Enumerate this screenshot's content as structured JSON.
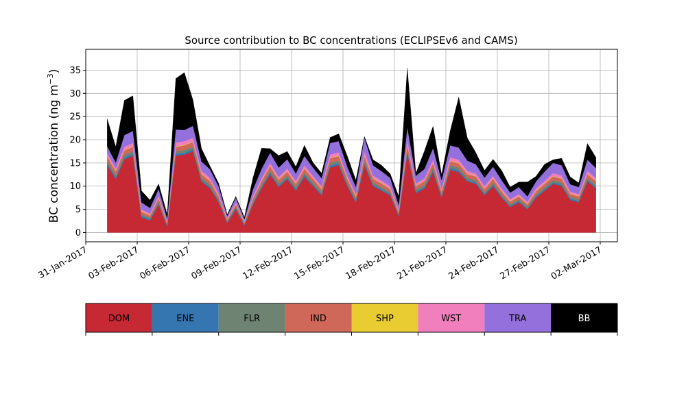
{
  "chart_data": {
    "type": "area",
    "title": "Source contribution to BC concentrations (ECLIPSEv6 and CAMS)",
    "ylabel": "BC concentration (ng m⁻³)",
    "ylabel_main": "BC concentration (ng m",
    "ylabel_sup": "−3",
    "ylabel_close": ")",
    "xlabel": "",
    "ylim": [
      -2,
      39.5
    ],
    "xlim": [
      "2017-01-31T00:00",
      "2017-03-03T00:00"
    ],
    "grid": true,
    "y_ticks": [
      0,
      5,
      10,
      15,
      20,
      25,
      30,
      35
    ],
    "x_ticks": [
      "2017-01-31",
      "2017-02-03",
      "2017-02-06",
      "2017-02-09",
      "2017-02-12",
      "2017-02-15",
      "2017-02-18",
      "2017-02-21",
      "2017-02-24",
      "2017-02-27",
      "2017-03-02"
    ],
    "x_tick_labels": [
      "31-Jan-2017",
      "03-Feb-2017",
      "06-Feb-2017",
      "09-Feb-2017",
      "12-Feb-2017",
      "15-Feb-2017",
      "18-Feb-2017",
      "21-Feb-2017",
      "24-Feb-2017",
      "27-Feb-2017",
      "02-Mar-2017"
    ],
    "x": [
      "2017-02-01T06:00",
      "2017-02-01T18:00",
      "2017-02-02T06:00",
      "2017-02-02T18:00",
      "2017-02-03T06:00",
      "2017-02-03T18:00",
      "2017-02-04T06:00",
      "2017-02-04T18:00",
      "2017-02-05T06:00",
      "2017-02-05T18:00",
      "2017-02-06T06:00",
      "2017-02-06T18:00",
      "2017-02-07T06:00",
      "2017-02-07T18:00",
      "2017-02-08T06:00",
      "2017-02-08T18:00",
      "2017-02-09T06:00",
      "2017-02-09T18:00",
      "2017-02-10T06:00",
      "2017-02-10T18:00",
      "2017-02-11T06:00",
      "2017-02-11T18:00",
      "2017-02-12T06:00",
      "2017-02-12T18:00",
      "2017-02-13T06:00",
      "2017-02-13T18:00",
      "2017-02-14T06:00",
      "2017-02-14T18:00",
      "2017-02-15T06:00",
      "2017-02-15T18:00",
      "2017-02-16T06:00",
      "2017-02-16T18:00",
      "2017-02-17T06:00",
      "2017-02-17T18:00",
      "2017-02-18T06:00",
      "2017-02-18T18:00",
      "2017-02-19T06:00",
      "2017-02-19T18:00",
      "2017-02-20T06:00",
      "2017-02-20T18:00",
      "2017-02-21T06:00",
      "2017-02-21T18:00",
      "2017-02-22T06:00",
      "2017-02-22T18:00",
      "2017-02-23T06:00",
      "2017-02-23T18:00",
      "2017-02-24T06:00",
      "2017-02-24T18:00",
      "2017-02-25T06:00",
      "2017-02-25T18:00",
      "2017-02-26T06:00",
      "2017-02-26T18:00",
      "2017-02-27T06:00",
      "2017-02-27T18:00",
      "2017-02-28T06:00",
      "2017-02-28T18:00",
      "2017-03-01T06:00",
      "2017-03-01T18:00"
    ],
    "series": [
      {
        "name": "DOM",
        "color": "#c62834",
        "values": [
          14.5,
          11.5,
          15.8,
          16.5,
          3.2,
          2.6,
          6.0,
          1.3,
          16.5,
          16.8,
          17.5,
          11.0,
          9.5,
          6.5,
          2.0,
          5.0,
          1.5,
          6.0,
          9.5,
          12.5,
          9.8,
          11.5,
          9.0,
          12.0,
          10.0,
          8.0,
          14.0,
          14.5,
          10.0,
          6.5,
          14.5,
          10.0,
          9.0,
          8.0,
          3.5,
          17.0,
          8.5,
          9.5,
          13.0,
          7.5,
          13.5,
          13.0,
          11.0,
          10.5,
          8.0,
          10.0,
          7.5,
          5.5,
          6.5,
          5.0,
          7.5,
          9.0,
          10.5,
          10.0,
          7.0,
          6.5,
          11.0,
          9.5
        ]
      },
      {
        "name": "ENE",
        "color": "#3575b0",
        "values": [
          0.4,
          0.4,
          0.4,
          0.4,
          0.3,
          0.3,
          0.3,
          0.2,
          0.4,
          0.4,
          0.4,
          0.3,
          0.3,
          0.3,
          0.2,
          0.3,
          0.2,
          0.3,
          0.3,
          0.4,
          0.3,
          0.3,
          0.3,
          0.4,
          0.3,
          0.3,
          0.4,
          0.4,
          0.3,
          0.3,
          0.4,
          0.3,
          0.3,
          0.3,
          0.2,
          0.4,
          0.3,
          0.3,
          0.4,
          0.3,
          0.4,
          0.4,
          0.3,
          0.3,
          0.3,
          0.3,
          0.3,
          0.2,
          0.3,
          0.2,
          0.3,
          0.3,
          0.3,
          0.3,
          0.3,
          0.3,
          0.3,
          0.3
        ]
      },
      {
        "name": "FLR",
        "color": "#6e8372",
        "values": [
          0.6,
          0.5,
          0.6,
          0.6,
          0.4,
          0.3,
          0.4,
          0.2,
          0.6,
          0.6,
          0.6,
          0.5,
          0.5,
          0.4,
          0.2,
          0.3,
          0.2,
          0.4,
          0.5,
          0.5,
          0.5,
          0.5,
          0.5,
          0.5,
          0.5,
          0.4,
          0.6,
          0.6,
          0.5,
          0.4,
          0.6,
          0.5,
          0.5,
          0.4,
          0.3,
          0.6,
          0.5,
          0.5,
          0.6,
          0.4,
          0.6,
          0.6,
          0.5,
          0.5,
          0.4,
          0.5,
          0.4,
          0.4,
          0.4,
          0.4,
          0.4,
          0.5,
          0.5,
          0.5,
          0.4,
          0.4,
          0.5,
          0.5
        ]
      },
      {
        "name": "IND",
        "color": "#d0685a",
        "values": [
          0.9,
          0.8,
          0.9,
          1.0,
          0.6,
          0.5,
          0.7,
          0.4,
          1.0,
          1.0,
          1.0,
          0.8,
          0.8,
          0.6,
          0.4,
          0.5,
          0.3,
          0.6,
          0.8,
          0.9,
          0.8,
          0.8,
          0.7,
          0.9,
          0.8,
          0.7,
          1.0,
          1.0,
          0.8,
          0.6,
          1.0,
          0.8,
          0.8,
          0.7,
          0.5,
          1.0,
          0.7,
          0.8,
          0.9,
          0.7,
          0.9,
          0.9,
          0.8,
          0.8,
          0.7,
          0.8,
          0.7,
          0.6,
          0.6,
          0.5,
          0.7,
          0.7,
          0.8,
          0.8,
          0.6,
          0.6,
          0.8,
          0.8
        ]
      },
      {
        "name": "SHP",
        "color": "#e8cc32",
        "values": [
          0.1,
          0.1,
          0.1,
          0.1,
          0.1,
          0.1,
          0.1,
          0.1,
          0.1,
          0.1,
          0.1,
          0.1,
          0.1,
          0.1,
          0.1,
          0.1,
          0.1,
          0.1,
          0.1,
          0.1,
          0.1,
          0.1,
          0.1,
          0.1,
          0.1,
          0.1,
          0.1,
          0.1,
          0.1,
          0.1,
          0.1,
          0.1,
          0.1,
          0.1,
          0.1,
          0.1,
          0.1,
          0.1,
          0.1,
          0.1,
          0.1,
          0.1,
          0.1,
          0.1,
          0.1,
          0.1,
          0.1,
          0.1,
          0.1,
          0.1,
          0.1,
          0.1,
          0.1,
          0.1,
          0.1,
          0.1,
          0.1,
          0.1
        ]
      },
      {
        "name": "WST",
        "color": "#f17fbd",
        "values": [
          0.6,
          0.5,
          0.7,
          0.7,
          0.4,
          0.3,
          0.4,
          0.2,
          0.8,
          0.8,
          0.8,
          0.6,
          0.6,
          0.4,
          0.2,
          0.3,
          0.2,
          0.4,
          0.5,
          0.6,
          0.5,
          0.6,
          0.5,
          0.6,
          0.5,
          0.5,
          0.7,
          0.7,
          0.5,
          0.4,
          0.8,
          0.6,
          0.5,
          0.5,
          0.3,
          0.8,
          0.5,
          0.5,
          0.7,
          0.5,
          0.7,
          0.7,
          0.6,
          0.5,
          0.5,
          0.5,
          0.5,
          0.4,
          0.4,
          0.4,
          0.5,
          0.5,
          0.6,
          0.6,
          0.4,
          0.4,
          0.6,
          0.5
        ]
      },
      {
        "name": "TRA",
        "color": "#9370db",
        "values": [
          1.5,
          1.3,
          2.5,
          2.6,
          1.5,
          1.2,
          1.5,
          0.6,
          2.8,
          2.4,
          2.6,
          2.0,
          1.8,
          1.6,
          0.5,
          1.0,
          0.4,
          1.5,
          2.0,
          2.2,
          2.0,
          2.0,
          1.6,
          2.0,
          1.8,
          1.7,
          2.5,
          2.4,
          2.0,
          1.5,
          3.0,
          2.2,
          2.0,
          1.8,
          1.0,
          2.8,
          1.6,
          2.0,
          2.5,
          1.8,
          2.6,
          2.6,
          2.2,
          2.0,
          1.8,
          2.0,
          1.8,
          1.4,
          1.5,
          1.2,
          1.5,
          2.0,
          2.2,
          2.2,
          1.6,
          1.5,
          2.4,
          2.2
        ]
      },
      {
        "name": "BB",
        "color": "#000000",
        "values": [
          5.9,
          3.4,
          7.5,
          7.6,
          2.5,
          1.7,
          1.1,
          0.9,
          11.0,
          12.4,
          5.6,
          2.8,
          0.7,
          0.7,
          0.3,
          0.3,
          0.4,
          2.5,
          4.5,
          0.9,
          2.6,
          1.7,
          1.5,
          2.3,
          1.1,
          1.1,
          1.2,
          1.6,
          2.3,
          1.5,
          0.3,
          1.2,
          1.3,
          0.9,
          1.9,
          12.8,
          0.6,
          3.9,
          4.7,
          1.2,
          3.1,
          10.9,
          4.9,
          2.5,
          1.6,
          1.6,
          2.1,
          1.2,
          1.1,
          3.1,
          1.1,
          1.6,
          0.7,
          1.5,
          1.6,
          0.9,
          3.5,
          2.3
        ]
      }
    ],
    "legend": {
      "placement": "bottom",
      "entries": [
        {
          "label": "DOM",
          "color": "#c62834",
          "text_color": "#000000"
        },
        {
          "label": "ENE",
          "color": "#3575b0",
          "text_color": "#000000"
        },
        {
          "label": "FLR",
          "color": "#6e8372",
          "text_color": "#000000"
        },
        {
          "label": "IND",
          "color": "#d0685a",
          "text_color": "#000000"
        },
        {
          "label": "SHP",
          "color": "#e8cc32",
          "text_color": "#000000"
        },
        {
          "label": "WST",
          "color": "#f17fbd",
          "text_color": "#000000"
        },
        {
          "label": "TRA",
          "color": "#9370db",
          "text_color": "#000000"
        },
        {
          "label": "BB",
          "color": "#000000",
          "text_color": "#ffffff"
        }
      ]
    }
  }
}
